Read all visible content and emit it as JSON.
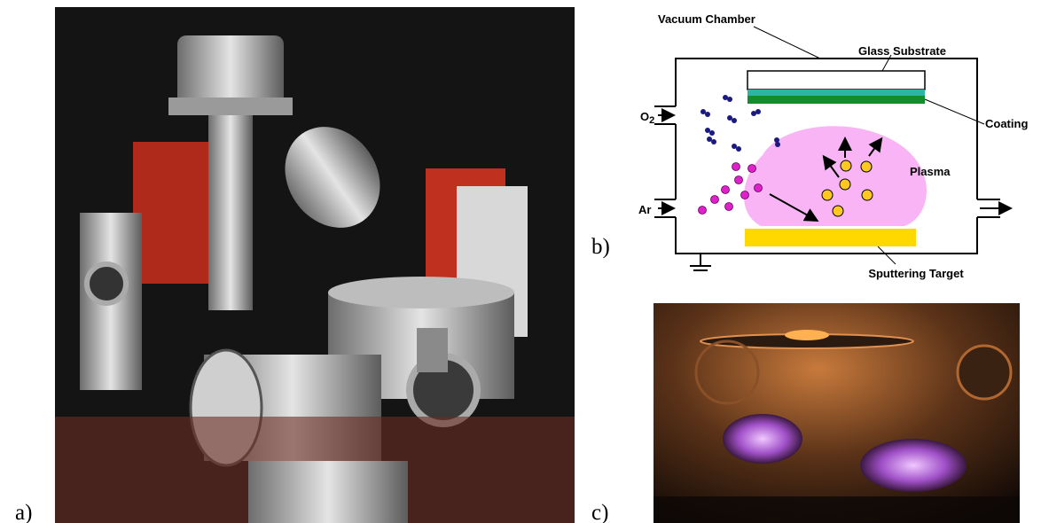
{
  "panels": {
    "a": "a)",
    "b": "b)",
    "c": "c)"
  },
  "diagram": {
    "vacuum_chamber": "Vacuum Chamber",
    "glass_substrate": "Glass Substrate",
    "coating": "Coating",
    "o2": {
      "base": "O",
      "sub": "2"
    },
    "plasma": "Plasma",
    "ar": "Ar",
    "sputtering_target": "Sputtering Target"
  }
}
